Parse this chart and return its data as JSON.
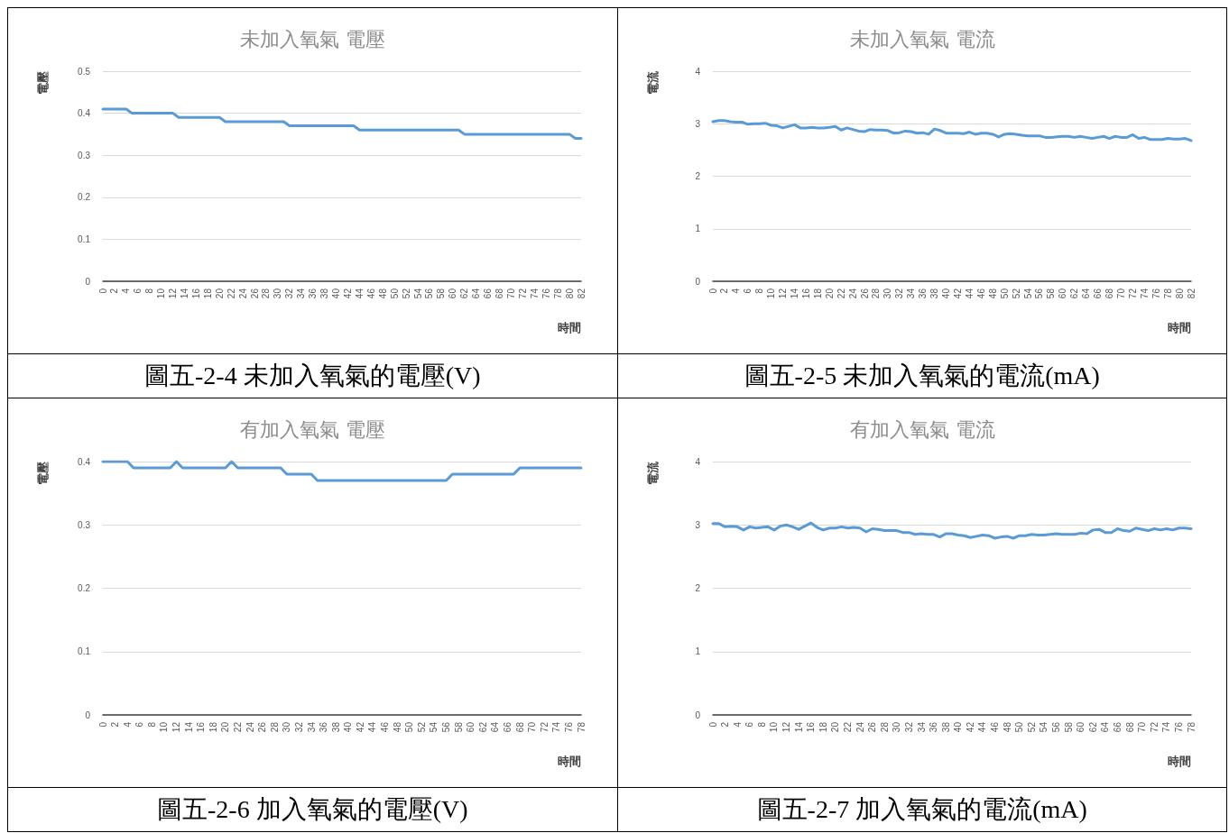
{
  "chart_data": [
    {
      "type": "line",
      "title": "未加入氧氣 電壓",
      "xlabel": "時間",
      "ylabel": "電壓",
      "annotations": [
        "圖五-2-4  未加入氧氣的電壓(V)"
      ],
      "grid": "y",
      "marker": "none",
      "ylim": [
        0,
        0.5
      ],
      "yticks": [
        0,
        0.1,
        0.2,
        0.3,
        0.4,
        0.5
      ],
      "categories": [
        "0",
        null,
        "2",
        null,
        "4",
        null,
        "6",
        null,
        "8",
        null,
        "10",
        null,
        "12",
        null,
        "14",
        null,
        "16",
        null,
        "18",
        null,
        "20",
        null,
        "22",
        null,
        "24",
        null,
        "26",
        null,
        "28",
        null,
        "30",
        null,
        "32",
        null,
        "34",
        null,
        "36",
        null,
        "38",
        null,
        "40",
        null,
        "42",
        null,
        "44",
        null,
        "46",
        null,
        "48",
        null,
        "50",
        null,
        "52",
        null,
        "54",
        null,
        "56",
        null,
        "58",
        null,
        "60",
        null,
        "62",
        null,
        "64",
        null,
        "66",
        null,
        "68",
        null,
        "70",
        null,
        "72",
        null,
        "74",
        null,
        "76",
        null,
        "78",
        null,
        "80",
        null,
        "82"
      ],
      "series": [
        {
          "color": "#5b9bd5",
          "values": [
            0.41,
            0.41,
            0.41,
            0.41,
            0.41,
            0.4,
            0.4,
            0.4,
            0.4,
            0.4,
            0.4,
            0.4,
            0.4,
            0.39,
            0.39,
            0.39,
            0.39,
            0.39,
            0.39,
            0.39,
            0.39,
            0.38,
            0.38,
            0.38,
            0.38,
            0.38,
            0.38,
            0.38,
            0.38,
            0.38,
            0.38,
            0.38,
            0.37,
            0.37,
            0.37,
            0.37,
            0.37,
            0.37,
            0.37,
            0.37,
            0.37,
            0.37,
            0.37,
            0.37,
            0.36,
            0.36,
            0.36,
            0.36,
            0.36,
            0.36,
            0.36,
            0.36,
            0.36,
            0.36,
            0.36,
            0.36,
            0.36,
            0.36,
            0.36,
            0.36,
            0.36,
            0.36,
            0.35,
            0.35,
            0.35,
            0.35,
            0.35,
            0.35,
            0.35,
            0.35,
            0.35,
            0.35,
            0.35,
            0.35,
            0.35,
            0.35,
            0.35,
            0.35,
            0.35,
            0.35,
            0.35,
            0.34,
            0.34
          ]
        }
      ]
    },
    {
      "type": "line",
      "title": "未加入氧氣 電流",
      "xlabel": "時間",
      "ylabel": "電流",
      "annotations": [
        "圖五-2-5  未加入氧氣的電流(mA)"
      ],
      "grid": "y",
      "marker": "none",
      "ylim": [
        0,
        4
      ],
      "yticks": [
        0,
        1,
        2,
        3,
        4
      ],
      "categories": [
        "0",
        null,
        "2",
        null,
        "4",
        null,
        "6",
        null,
        "8",
        null,
        "10",
        null,
        "12",
        null,
        "14",
        null,
        "16",
        null,
        "18",
        null,
        "20",
        null,
        "22",
        null,
        "24",
        null,
        "26",
        null,
        "28",
        null,
        "30",
        null,
        "32",
        null,
        "34",
        null,
        "36",
        null,
        "38",
        null,
        "40",
        null,
        "42",
        null,
        "44",
        null,
        "46",
        null,
        "48",
        null,
        "50",
        null,
        "52",
        null,
        "54",
        null,
        "56",
        null,
        "58",
        null,
        "60",
        null,
        "62",
        null,
        "64",
        null,
        "66",
        null,
        "68",
        null,
        "70",
        null,
        "72",
        null,
        "74",
        null,
        "76",
        null,
        "78",
        null,
        "80",
        null,
        "82"
      ],
      "series": [
        {
          "color": "#5b9bd5",
          "values": [
            3.04,
            3.06,
            3.06,
            3.04,
            3.03,
            3.03,
            2.99,
            3.0,
            3.0,
            3.01,
            2.97,
            2.96,
            2.92,
            2.95,
            2.98,
            2.92,
            2.92,
            2.93,
            2.92,
            2.92,
            2.93,
            2.95,
            2.88,
            2.92,
            2.89,
            2.86,
            2.85,
            2.89,
            2.88,
            2.88,
            2.87,
            2.82,
            2.83,
            2.86,
            2.85,
            2.82,
            2.83,
            2.8,
            2.9,
            2.87,
            2.82,
            2.82,
            2.82,
            2.81,
            2.84,
            2.8,
            2.82,
            2.82,
            2.8,
            2.75,
            2.8,
            2.81,
            2.8,
            2.78,
            2.77,
            2.77,
            2.77,
            2.74,
            2.74,
            2.75,
            2.76,
            2.76,
            2.74,
            2.76,
            2.74,
            2.72,
            2.74,
            2.76,
            2.72,
            2.76,
            2.74,
            2.74,
            2.79,
            2.72,
            2.74,
            2.7,
            2.7,
            2.7,
            2.72,
            2.71,
            2.71,
            2.72,
            2.68
          ]
        }
      ]
    },
    {
      "type": "line",
      "title": "有加入氧氣 電壓",
      "xlabel": "時間",
      "ylabel": "電壓",
      "annotations": [
        "圖五-2-6 加入氧氣的電壓(V)"
      ],
      "grid": "y",
      "marker": "none",
      "ylim": [
        0,
        0.4
      ],
      "yticks": [
        0,
        0.1,
        0.2,
        0.3,
        0.4
      ],
      "categories": [
        "0",
        null,
        "2",
        null,
        "4",
        null,
        "6",
        null,
        "8",
        null,
        "10",
        null,
        "12",
        null,
        "14",
        null,
        "16",
        null,
        "18",
        null,
        "20",
        null,
        "22",
        null,
        "24",
        null,
        "26",
        null,
        "28",
        null,
        "30",
        null,
        "32",
        null,
        "34",
        null,
        "36",
        null,
        "38",
        null,
        "40",
        null,
        "42",
        null,
        "44",
        null,
        "46",
        null,
        "48",
        null,
        "50",
        null,
        "52",
        null,
        "54",
        null,
        "56",
        null,
        "58",
        null,
        "60",
        null,
        "62",
        null,
        "64",
        null,
        "66",
        null,
        "68",
        null,
        "70",
        null,
        "72",
        null,
        "74",
        null,
        "76",
        null,
        "78"
      ],
      "series": [
        {
          "color": "#5b9bd5",
          "values": [
            0.4,
            0.4,
            0.4,
            0.4,
            0.4,
            0.39,
            0.39,
            0.39,
            0.39,
            0.39,
            0.39,
            0.39,
            0.4,
            0.39,
            0.39,
            0.39,
            0.39,
            0.39,
            0.39,
            0.39,
            0.39,
            0.4,
            0.39,
            0.39,
            0.39,
            0.39,
            0.39,
            0.39,
            0.39,
            0.39,
            0.38,
            0.38,
            0.38,
            0.38,
            0.38,
            0.37,
            0.37,
            0.37,
            0.37,
            0.37,
            0.37,
            0.37,
            0.37,
            0.37,
            0.37,
            0.37,
            0.37,
            0.37,
            0.37,
            0.37,
            0.37,
            0.37,
            0.37,
            0.37,
            0.37,
            0.37,
            0.37,
            0.38,
            0.38,
            0.38,
            0.38,
            0.38,
            0.38,
            0.38,
            0.38,
            0.38,
            0.38,
            0.38,
            0.39,
            0.39,
            0.39,
            0.39,
            0.39,
            0.39,
            0.39,
            0.39,
            0.39,
            0.39,
            0.39
          ]
        }
      ]
    },
    {
      "type": "line",
      "title": "有加入氧氣 電流",
      "xlabel": "時間",
      "ylabel": "電流",
      "annotations": [
        "圖五-2-7 加入氧氣的電流(mA)"
      ],
      "grid": "y",
      "marker": "none",
      "ylim": [
        0,
        4
      ],
      "yticks": [
        0,
        1,
        2,
        3,
        4
      ],
      "categories": [
        "0",
        null,
        "2",
        null,
        "4",
        null,
        "6",
        null,
        "8",
        null,
        "10",
        null,
        "12",
        null,
        "14",
        null,
        "16",
        null,
        "18",
        null,
        "20",
        null,
        "22",
        null,
        "24",
        null,
        "26",
        null,
        "28",
        null,
        "30",
        null,
        "32",
        null,
        "34",
        null,
        "36",
        null,
        "38",
        null,
        "40",
        null,
        "42",
        null,
        "44",
        null,
        "46",
        null,
        "48",
        null,
        "50",
        null,
        "52",
        null,
        "54",
        null,
        "56",
        null,
        "58",
        null,
        "60",
        null,
        "62",
        null,
        "64",
        null,
        "66",
        null,
        "68",
        null,
        "70",
        null,
        "72",
        null,
        "74",
        null,
        "76",
        null,
        "78"
      ],
      "series": [
        {
          "color": "#5b9bd5",
          "values": [
            3.02,
            3.02,
            2.97,
            2.98,
            2.97,
            2.92,
            2.97,
            2.95,
            2.96,
            2.97,
            2.92,
            2.98,
            3.0,
            2.97,
            2.93,
            2.98,
            3.03,
            2.96,
            2.92,
            2.95,
            2.95,
            2.97,
            2.95,
            2.96,
            2.95,
            2.89,
            2.94,
            2.93,
            2.91,
            2.91,
            2.91,
            2.88,
            2.88,
            2.85,
            2.86,
            2.85,
            2.85,
            2.81,
            2.86,
            2.86,
            2.84,
            2.83,
            2.8,
            2.82,
            2.84,
            2.83,
            2.79,
            2.81,
            2.82,
            2.79,
            2.83,
            2.83,
            2.85,
            2.84,
            2.84,
            2.85,
            2.86,
            2.85,
            2.85,
            2.85,
            2.87,
            2.86,
            2.92,
            2.93,
            2.88,
            2.88,
            2.94,
            2.91,
            2.9,
            2.95,
            2.93,
            2.91,
            2.94,
            2.92,
            2.94,
            2.92,
            2.95,
            2.95,
            2.94
          ]
        }
      ]
    }
  ]
}
